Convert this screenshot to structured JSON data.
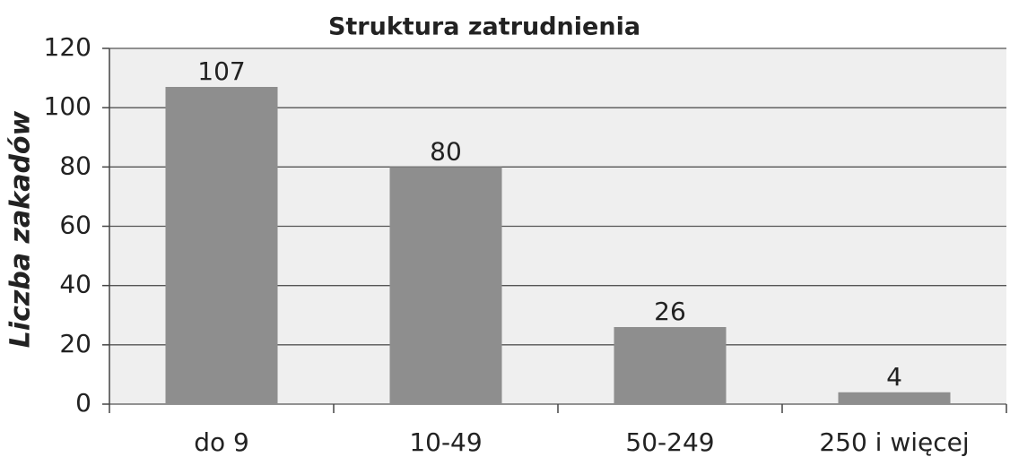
{
  "chart_data": {
    "type": "bar",
    "title": "Struktura zatrudnienia",
    "y_label": "Liczba zakadów",
    "categories": [
      "do 9",
      "10-49",
      "50-249",
      "250 i więcej"
    ],
    "values": [
      107,
      80,
      26,
      4
    ],
    "color": "#8e8e8e",
    "ylim": [
      0,
      120
    ],
    "yticks": [
      0,
      20,
      40,
      60,
      80,
      100,
      120
    ],
    "grid": true
  }
}
